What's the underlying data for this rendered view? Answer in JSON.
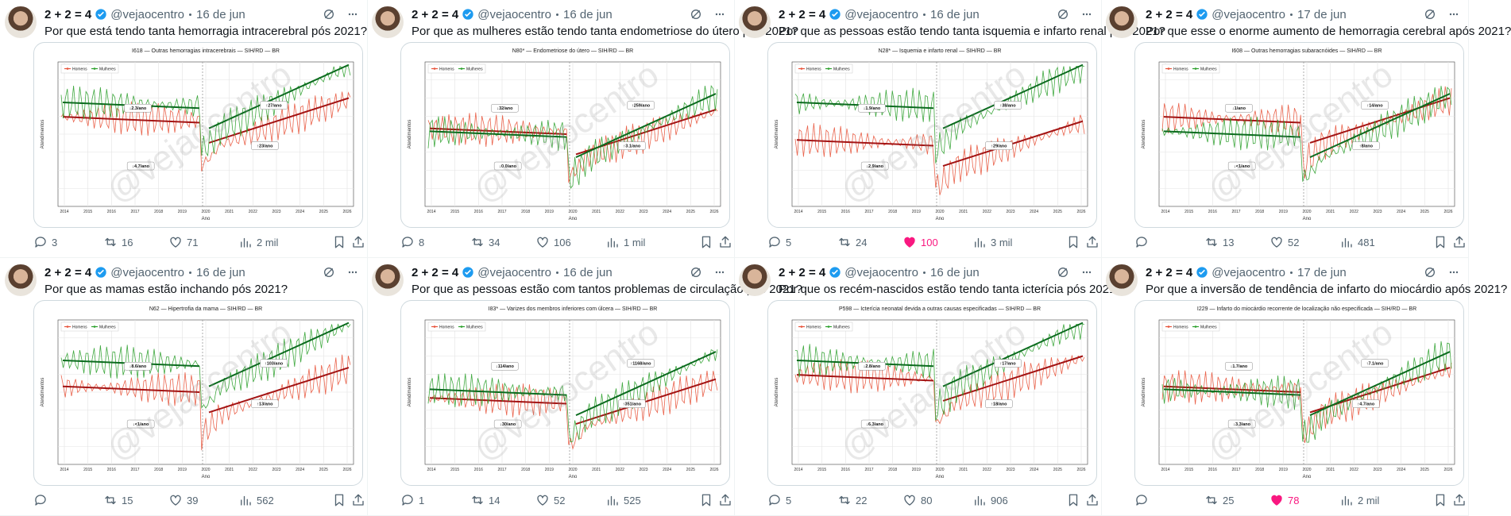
{
  "tweets": [
    {
      "author": "2 + 2 = 4",
      "handle": "@vejaocentro",
      "date": "16 de jun",
      "text": "Por que está tendo tanta hemorragia intracerebral pós 2021?",
      "chart": {
        "title": "I618 — Outras hemorragias intracerebrais — SIH/RD — BR",
        "legend": [
          "Homens",
          "Mulheres"
        ],
        "colors": [
          "#e8533a",
          "#2ca02c"
        ],
        "annotations": [
          "↓2.3/ano",
          "↓4.7/ano",
          "↑27/ano",
          "↑23/ano"
        ],
        "x_label": "Ano",
        "y_label": "Atendimentos",
        "watermark": "@vejaocentro",
        "xticks": [
          2014,
          2015,
          2016,
          2017,
          2018,
          2019,
          2020,
          2021,
          2022,
          2023,
          2024,
          2025,
          2026
        ]
      },
      "replies": "3",
      "retweets": "16",
      "likes": "71",
      "views": "2 mil",
      "liked": false
    },
    {
      "author": "2 + 2 = 4",
      "handle": "@vejaocentro",
      "date": "16 de jun",
      "text": "Por que as mulheres estão tendo tanta endometriose do útero pós 2021?",
      "chart": {
        "title": "N80* — Endometriose do útero — SIH/RD — BR",
        "legend": [
          "Homens",
          "Mulheres"
        ],
        "colors": [
          "#e8533a",
          "#2ca02c"
        ],
        "annotations": [
          "↓32/ano",
          "↓0.0/ano",
          "↑259/ano",
          "↑3.1/ano"
        ],
        "x_label": "Ano",
        "y_label": "Atendimentos",
        "watermark": "@vejaocentro",
        "xticks": [
          2014,
          2015,
          2016,
          2017,
          2018,
          2019,
          2020,
          2021,
          2022,
          2023,
          2024,
          2025,
          2026
        ]
      },
      "replies": "8",
      "retweets": "34",
      "likes": "106",
      "views": "1 mil",
      "liked": false
    },
    {
      "author": "2 + 2 = 4",
      "handle": "@vejaocentro",
      "date": "16 de jun",
      "text": "Por que as pessoas estão tendo tanta isquemia e infarto renal pós 2021?",
      "chart": {
        "title": "N28* — Isquemia e infarto renal — SIH/RD — BR",
        "legend": [
          "Homens",
          "Mulheres"
        ],
        "colors": [
          "#e8533a",
          "#2ca02c"
        ],
        "annotations": [
          "↓1.9/ano",
          "↓2.9/ano",
          "↑38/ano",
          "↑29/ano"
        ],
        "x_label": "Ano",
        "y_label": "Atendimentos",
        "watermark": "@vejaocentro",
        "xticks": [
          2014,
          2015,
          2016,
          2017,
          2018,
          2019,
          2020,
          2021,
          2022,
          2023,
          2024,
          2025,
          2026
        ]
      },
      "replies": "5",
      "retweets": "24",
      "likes": "100",
      "views": "3 mil",
      "liked": true
    },
    {
      "author": "2 + 2 = 4",
      "handle": "@vejaocentro",
      "date": "17 de jun",
      "text": "Por que esse o enorme aumento de hemorragia cerebral após 2021?",
      "chart": {
        "title": "I608 — Outras hemorragias subaracnóides — SIH/RD — BR",
        "legend": [
          "Homens",
          "Mulheres"
        ],
        "colors": [
          "#e8533a",
          "#2ca02c"
        ],
        "annotations": [
          "↓1/ano",
          "↓<1/ano",
          "↑14/ano",
          "↑8/ano"
        ],
        "x_label": "Ano",
        "y_label": "Atendimentos",
        "watermark": "@vejaocentro",
        "xticks": [
          2014,
          2015,
          2016,
          2017,
          2018,
          2019,
          2020,
          2021,
          2022,
          2023,
          2024,
          2025,
          2026
        ]
      },
      "retweets": "13",
      "likes": "52",
      "views": "481",
      "liked": false
    },
    {
      "author": "2 + 2 = 4",
      "handle": "@vejaocentro",
      "date": "16 de jun",
      "text": "Por que as mamas estão inchando pós 2021?",
      "chart": {
        "title": "N62 — Hipertrofia da mama — SIH/RD — BR",
        "legend": [
          "Homens",
          "Mulheres"
        ],
        "colors": [
          "#e8533a",
          "#2ca02c"
        ],
        "annotations": [
          "↓8.6/ano",
          "↓<1/ano",
          "↑103/ano",
          "↑13/ano"
        ],
        "x_label": "Ano",
        "y_label": "Atendimentos",
        "watermark": "@vejaocentro",
        "xticks": [
          2014,
          2015,
          2016,
          2017,
          2018,
          2019,
          2020,
          2021,
          2022,
          2023,
          2024,
          2025,
          2026
        ]
      },
      "retweets": "15",
      "likes": "39",
      "views": "562",
      "liked": false
    },
    {
      "author": "2 + 2 = 4",
      "handle": "@vejaocentro",
      "date": "16 de jun",
      "text": "Por que as pessoas estão com tantos problemas de circulação pós 2021?",
      "chart": {
        "title": "I83* — Varizes dos membros inferiores com úlcera — SIH/RD — BR",
        "legend": [
          "Homens",
          "Mulheres"
        ],
        "colors": [
          "#e8533a",
          "#2ca02c"
        ],
        "annotations": [
          "↓114/ano",
          "↓30/ano",
          "↑1168/ano",
          "↑351/ano"
        ],
        "x_label": "Ano",
        "y_label": "Atendimentos",
        "watermark": "@vejaocentro",
        "xticks": [
          2014,
          2015,
          2016,
          2017,
          2018,
          2019,
          2020,
          2021,
          2022,
          2023,
          2024,
          2025,
          2026
        ]
      },
      "replies": "1",
      "retweets": "14",
      "likes": "52",
      "views": "525",
      "liked": false
    },
    {
      "author": "2 + 2 = 4",
      "handle": "@vejaocentro",
      "date": "16 de jun",
      "text": "Por que os recém-nascidos estão tendo tanta icterícia pós 2021?",
      "chart": {
        "title": "P598 — Icterícia neonatal devida a outras causas especificadas — SIH/RD — BR",
        "legend": [
          "Homens",
          "Mulheres"
        ],
        "colors": [
          "#e8533a",
          "#2ca02c"
        ],
        "annotations": [
          "↓2.8/ano",
          "↓6.3/ano",
          "↑17/ano",
          "↑18/ano"
        ],
        "x_label": "Ano",
        "y_label": "Atendimentos",
        "watermark": "@vejaocentro",
        "xticks": [
          2014,
          2015,
          2016,
          2017,
          2018,
          2019,
          2020,
          2021,
          2022,
          2023,
          2024,
          2025,
          2026
        ]
      },
      "replies": "5",
      "retweets": "22",
      "likes": "80",
      "views": "906",
      "liked": false
    },
    {
      "author": "2 + 2 = 4",
      "handle": "@vejaocentro",
      "date": "17 de jun",
      "text": "Por que a inversão de tendência de infarto do miocárdio após 2021?",
      "chart": {
        "title": "I229 — Infarto do miocárdio recorrente de localização não especificada — SIH/RD — BR",
        "legend": [
          "Homens",
          "Mulheres"
        ],
        "colors": [
          "#e8533a",
          "#2ca02c"
        ],
        "annotations": [
          "↓1.7/ano",
          "↓3.3/ano",
          "↑7.1/ano",
          "↑4.7/ano"
        ],
        "x_label": "Ano",
        "y_label": "Atendimentos",
        "watermark": "@vejaocentro",
        "xticks": [
          2014,
          2015,
          2016,
          2017,
          2018,
          2019,
          2020,
          2021,
          2022,
          2023,
          2024,
          2025,
          2026
        ]
      },
      "retweets": "25",
      "likes": "78",
      "views": "2 mil",
      "liked": true
    }
  ]
}
